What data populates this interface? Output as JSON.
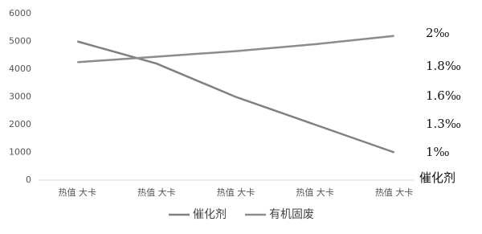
{
  "chart_data": {
    "type": "line",
    "categories": [
      "热值 大卡",
      "热值 大卡",
      "热值 大卡",
      "热值 大卡",
      "热值 大卡"
    ],
    "series": [
      {
        "name": "催化剂",
        "color": "#808080",
        "values": [
          5000,
          4200,
          3000,
          2000,
          1000
        ]
      },
      {
        "name": "有机固废",
        "color": "#8c8c8c",
        "values": [
          4250,
          4450,
          4650,
          4900,
          5200
        ]
      }
    ],
    "ylim": [
      0,
      6000
    ],
    "yticks": [
      0,
      1000,
      2000,
      3000,
      4000,
      5000,
      6000
    ],
    "grid": false,
    "right_labels": [
      "2‰",
      "1.8‰",
      "1.6‰",
      "1.3‰",
      "1‰"
    ],
    "right_axis_label": "催化剂",
    "legend": "bottom"
  }
}
